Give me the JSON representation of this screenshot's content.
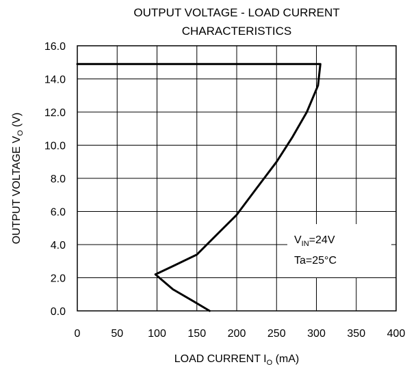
{
  "chart_data": {
    "type": "line",
    "title_lines": [
      "OUTPUT VOLTAGE - LOAD CURRENT",
      "CHARACTERISTICS"
    ],
    "xlabel": {
      "main": "LOAD CURRENT I",
      "sub": "O",
      "tail": " (mA)"
    },
    "ylabel": {
      "main": "OUTPUT VOLTAGE V",
      "sub": "O",
      "tail": " (V)"
    },
    "xlim": [
      0,
      400
    ],
    "ylim": [
      0,
      16
    ],
    "x_ticks": [
      "0",
      "50",
      "100",
      "150",
      "200",
      "250",
      "300",
      "350",
      "400"
    ],
    "y_ticks": [
      "0.0",
      "2.0",
      "4.0",
      "6.0",
      "8.0",
      "10.0",
      "12.0",
      "14.0",
      "16.0"
    ],
    "grid": true,
    "annotations": [
      {
        "main": "V",
        "sub": "IN",
        "tail": "=24V"
      },
      {
        "main": "Ta=25°C",
        "sub": "",
        "tail": ""
      }
    ],
    "series": [
      {
        "x": [
          0,
          305,
          302,
          288,
          270,
          250,
          225,
          200,
          175,
          150,
          120,
          98,
          120,
          145,
          166
        ],
        "y": [
          14.9,
          14.9,
          13.6,
          12.0,
          10.5,
          9.0,
          7.4,
          5.8,
          4.6,
          3.4,
          2.7,
          2.2,
          1.3,
          0.6,
          0.0
        ]
      }
    ]
  }
}
